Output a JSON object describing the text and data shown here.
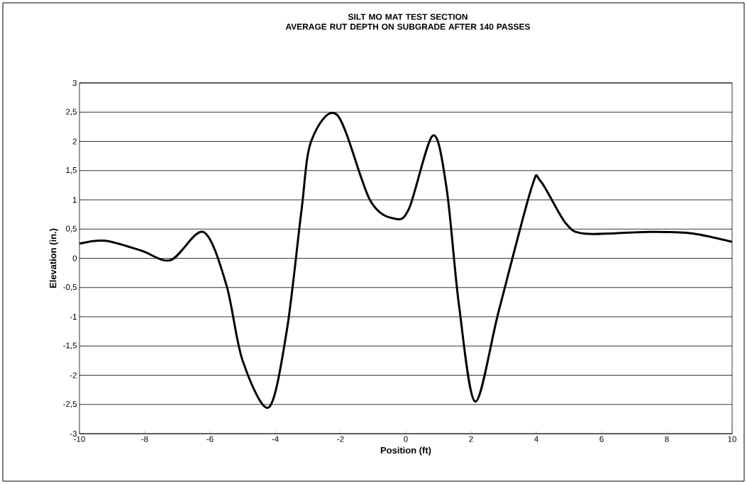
{
  "chart_data": {
    "type": "line",
    "title": "SILT MO MAT TEST SECTION\nAVERAGE RUT DEPTH ON SUBGRADE AFTER 140 PASSES",
    "xlabel": "Position (ft)",
    "ylabel": "Elevation (in.)",
    "x": [
      -10,
      -9.2,
      -8.1,
      -7.2,
      -6.2,
      -5.5,
      -5.0,
      -4.2,
      -3.65,
      -3.2,
      -2.9,
      -2.1,
      -1.1,
      -0.35,
      0.1,
      0.83,
      1.25,
      1.63,
      2.13,
      2.85,
      3.85,
      4.13,
      4.9,
      5.5,
      7.3,
      8.7,
      10
    ],
    "series": [
      {
        "color": "#000000",
        "values": [
          0.25,
          0.3,
          0.13,
          -0.03,
          0.45,
          -0.45,
          -1.75,
          -2.55,
          -1.25,
          0.8,
          2.0,
          2.45,
          1.0,
          0.68,
          0.85,
          2.1,
          1.2,
          -0.8,
          -2.45,
          -0.9,
          1.2,
          1.32,
          0.6,
          0.42,
          0.45,
          0.43,
          0.28
        ]
      }
    ],
    "xlim": [
      -10,
      10
    ],
    "ylim": [
      -3,
      3
    ],
    "xticks": [
      -10,
      -8,
      -6,
      -4,
      -2,
      0,
      2,
      4,
      6,
      8,
      10
    ],
    "yticks": [
      -3,
      {
        "value": -2.5,
        "label": "-2,5"
      },
      -2,
      {
        "value": -1.5,
        "label": "-1,5"
      },
      -1,
      {
        "value": -0.5,
        "label": "-0,5"
      },
      0,
      {
        "value": 0.5,
        "label": "0,5"
      },
      1,
      {
        "value": 1.5,
        "label": "1,5"
      },
      2,
      {
        "value": 2.5,
        "label": "2,5"
      },
      3
    ],
    "grid": "y",
    "marker": "none",
    "line_style": "solid"
  }
}
